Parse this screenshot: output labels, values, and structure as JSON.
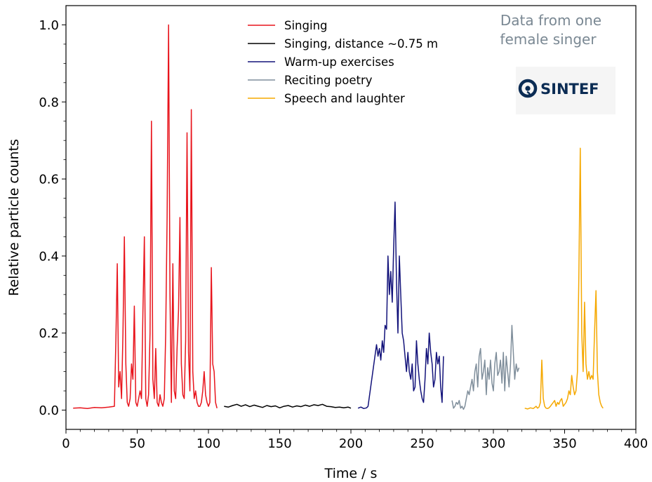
{
  "chart_data": {
    "type": "line",
    "xlabel": "Time / s",
    "ylabel": "Relative particle counts",
    "xlim": [
      0,
      400
    ],
    "ylim": [
      -0.05,
      1.05
    ],
    "xticks": [
      0,
      50,
      100,
      150,
      200,
      250,
      300,
      350,
      400
    ],
    "yticks": [
      0.0,
      0.2,
      0.4,
      0.6,
      0.8,
      1.0
    ],
    "xtick_labels": [
      "0",
      "50",
      "100",
      "150",
      "200",
      "250",
      "300",
      "350",
      "400"
    ],
    "ytick_labels": [
      "0.0",
      "0.2",
      "0.4",
      "0.6",
      "0.8",
      "1.0"
    ],
    "grid": false,
    "legend_position": "top-center",
    "annotation": {
      "lines": [
        "Data from one",
        "female singer"
      ]
    },
    "logo": {
      "text": "SINTEF",
      "icon": "sintef-logo-icon"
    },
    "series": [
      {
        "name": "Singing",
        "color": "#e8141c",
        "x": [
          5,
          10,
          15,
          20,
          25,
          30,
          34,
          35,
          36,
          37,
          38,
          39,
          40,
          41,
          42,
          43,
          44,
          45,
          46,
          47,
          48,
          49,
          50,
          52,
          53,
          54,
          55,
          56,
          57,
          58,
          59,
          60,
          61,
          62,
          63,
          64,
          65,
          66,
          67,
          68,
          69,
          70,
          71,
          72,
          73,
          74,
          75,
          76,
          77,
          78,
          79,
          80,
          81,
          82,
          83,
          84,
          85,
          86,
          87,
          88,
          89,
          90,
          91,
          92,
          93,
          94,
          95,
          96,
          97,
          98,
          99,
          100,
          101,
          102,
          103,
          104,
          105,
          106
        ],
        "y": [
          0.005,
          0.006,
          0.004,
          0.007,
          0.006,
          0.008,
          0.01,
          0.18,
          0.38,
          0.06,
          0.1,
          0.03,
          0.2,
          0.45,
          0.12,
          0.02,
          0.01,
          0.03,
          0.12,
          0.08,
          0.27,
          0.02,
          0.01,
          0.05,
          0.03,
          0.25,
          0.45,
          0.03,
          0.01,
          0.04,
          0.2,
          0.75,
          0.08,
          0.03,
          0.16,
          0.02,
          0.01,
          0.04,
          0.02,
          0.01,
          0.03,
          0.2,
          0.5,
          1.0,
          0.3,
          0.02,
          0.38,
          0.05,
          0.03,
          0.16,
          0.26,
          0.5,
          0.12,
          0.04,
          0.03,
          0.18,
          0.72,
          0.15,
          0.05,
          0.78,
          0.1,
          0.03,
          0.05,
          0.02,
          0.01,
          0.01,
          0.02,
          0.05,
          0.1,
          0.04,
          0.02,
          0.01,
          0.02,
          0.37,
          0.12,
          0.1,
          0.02,
          0.005
        ]
      },
      {
        "name": "Singing, distance ~0.75 m",
        "color": "#000000",
        "x": [
          111,
          114,
          117,
          120,
          123,
          126,
          129,
          132,
          135,
          138,
          141,
          144,
          147,
          150,
          153,
          156,
          159,
          162,
          165,
          168,
          171,
          174,
          177,
          180,
          183,
          186,
          189,
          192,
          195,
          198,
          200
        ],
        "y": [
          0.01,
          0.008,
          0.012,
          0.015,
          0.01,
          0.014,
          0.009,
          0.013,
          0.01,
          0.007,
          0.012,
          0.009,
          0.011,
          0.006,
          0.01,
          0.012,
          0.008,
          0.011,
          0.009,
          0.013,
          0.01,
          0.014,
          0.012,
          0.015,
          0.01,
          0.009,
          0.007,
          0.008,
          0.006,
          0.008,
          0.005
        ]
      },
      {
        "name": "Warm-up exercises",
        "color": "#12127a",
        "x": [
          205,
          207,
          209,
          211,
          212,
          218,
          219,
          220,
          221,
          222,
          223,
          224,
          225,
          226,
          227,
          228,
          229,
          230,
          231,
          232,
          233,
          234,
          235,
          236,
          237,
          238,
          239,
          240,
          241,
          242,
          243,
          244,
          245,
          246,
          247,
          248,
          249,
          250,
          251,
          252,
          253,
          254,
          255,
          256,
          257,
          258,
          259,
          260,
          261,
          262,
          263,
          264,
          265
        ],
        "y": [
          0.005,
          0.008,
          0.004,
          0.006,
          0.01,
          0.17,
          0.14,
          0.16,
          0.13,
          0.18,
          0.15,
          0.22,
          0.21,
          0.4,
          0.3,
          0.36,
          0.28,
          0.42,
          0.54,
          0.33,
          0.2,
          0.4,
          0.3,
          0.2,
          0.18,
          0.14,
          0.1,
          0.15,
          0.1,
          0.08,
          0.12,
          0.05,
          0.06,
          0.18,
          0.12,
          0.08,
          0.05,
          0.03,
          0.02,
          0.08,
          0.16,
          0.12,
          0.2,
          0.15,
          0.12,
          0.06,
          0.08,
          0.15,
          0.12,
          0.14,
          0.06,
          0.02,
          0.14
        ]
      },
      {
        "name": "Reciting poetry",
        "color": "#7f8e9b",
        "x": [
          271,
          272,
          273,
          274,
          275,
          276,
          277,
          278,
          279,
          280,
          281,
          282,
          283,
          284,
          285,
          286,
          287,
          288,
          289,
          290,
          291,
          292,
          293,
          294,
          295,
          296,
          297,
          298,
          299,
          300,
          301,
          302,
          303,
          304,
          305,
          306,
          307,
          308,
          309,
          310,
          311,
          312,
          313,
          314,
          315,
          316,
          317,
          318
        ],
        "y": [
          0.025,
          0.005,
          0.01,
          0.02,
          0.015,
          0.025,
          0.005,
          0.01,
          0.002,
          0.01,
          0.03,
          0.05,
          0.04,
          0.06,
          0.08,
          0.05,
          0.1,
          0.12,
          0.06,
          0.14,
          0.16,
          0.08,
          0.1,
          0.13,
          0.04,
          0.11,
          0.08,
          0.13,
          0.07,
          0.05,
          0.12,
          0.15,
          0.09,
          0.1,
          0.13,
          0.07,
          0.15,
          0.05,
          0.14,
          0.1,
          0.06,
          0.12,
          0.22,
          0.15,
          0.08,
          0.12,
          0.1,
          0.11
        ]
      },
      {
        "name": "Speech and laughter",
        "color": "#f5a800",
        "x": [
          322,
          324,
          326,
          328,
          330,
          331,
          332,
          333,
          334,
          335,
          336,
          337,
          338,
          339,
          340,
          341,
          342,
          343,
          344,
          345,
          346,
          347,
          348,
          349,
          350,
          351,
          352,
          353,
          354,
          355,
          356,
          357,
          358,
          359,
          360,
          361,
          362,
          363,
          364,
          365,
          366,
          367,
          368,
          369,
          370,
          371,
          372,
          373,
          374,
          375,
          376,
          377
        ],
        "y": [
          0.005,
          0.003,
          0.006,
          0.004,
          0.01,
          0.005,
          0.008,
          0.02,
          0.13,
          0.03,
          0.01,
          0.005,
          0.004,
          0.006,
          0.01,
          0.015,
          0.02,
          0.025,
          0.01,
          0.02,
          0.015,
          0.025,
          0.03,
          0.01,
          0.015,
          0.02,
          0.03,
          0.05,
          0.04,
          0.09,
          0.06,
          0.04,
          0.05,
          0.1,
          0.35,
          0.68,
          0.2,
          0.1,
          0.28,
          0.12,
          0.08,
          0.1,
          0.08,
          0.09,
          0.08,
          0.2,
          0.31,
          0.1,
          0.04,
          0.02,
          0.01,
          0.005
        ]
      }
    ]
  }
}
